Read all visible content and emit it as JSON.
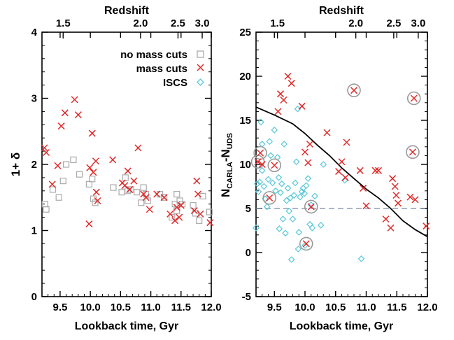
{
  "chart_data": [
    {
      "type": "scatter",
      "xlabel": "Lookback time, Gyr",
      "ylabel": "1+ δ",
      "top_axis_label": "Redshift",
      "xlim": [
        9.2,
        12.0
      ],
      "ylim": [
        0,
        4
      ],
      "x_ticks": [
        9.5,
        10.0,
        10.5,
        11.0,
        11.5,
        12.0
      ],
      "x_tick_labels": [
        "9.5",
        "10.0",
        "10.5",
        "11.0",
        "11.5",
        "12.0"
      ],
      "y_ticks": [
        0,
        1,
        2,
        3,
        4
      ],
      "y_tick_labels": [
        "0",
        "1",
        "2",
        "3",
        "4"
      ],
      "top_ticks": [
        {
          "t": 9.55,
          "label": "1.5"
        },
        {
          "t": 10.83,
          "label": "2.0"
        },
        {
          "t": 11.45,
          "label": "2.5"
        },
        {
          "t": 11.85,
          "label": "3.0"
        }
      ],
      "legend_position": "top-right",
      "series": [
        {
          "name": "no mass cuts",
          "marker": "square",
          "color": "#aaaaaa",
          "points": [
            [
              9.25,
              1.4
            ],
            [
              9.27,
              1.32
            ],
            [
              9.38,
              1.62
            ],
            [
              9.48,
              1.5
            ],
            [
              9.55,
              1.75
            ],
            [
              9.6,
              2.0
            ],
            [
              9.72,
              2.07
            ],
            [
              9.82,
              1.85
            ],
            [
              9.98,
              1.7
            ],
            [
              10.03,
              1.78
            ],
            [
              10.05,
              1.48
            ],
            [
              10.08,
              1.42
            ],
            [
              10.38,
              1.65
            ],
            [
              10.52,
              1.58
            ],
            [
              10.58,
              1.8
            ],
            [
              10.62,
              1.6
            ],
            [
              10.67,
              1.62
            ],
            [
              10.77,
              1.58
            ],
            [
              10.84,
              1.42
            ],
            [
              10.88,
              1.65
            ],
            [
              10.92,
              1.55
            ],
            [
              10.95,
              1.45
            ],
            [
              11.15,
              1.55
            ],
            [
              11.22,
              1.5
            ],
            [
              11.35,
              1.2
            ],
            [
              11.4,
              1.4
            ],
            [
              11.43,
              1.55
            ],
            [
              11.48,
              1.45
            ],
            [
              11.52,
              1.4
            ],
            [
              11.7,
              1.38
            ],
            [
              11.74,
              1.26
            ],
            [
              11.8,
              1.15
            ],
            [
              11.86,
              1.52
            ],
            [
              11.97,
              1.28
            ],
            [
              11.43,
              1.3
            ]
          ]
        },
        {
          "name": "mass cuts",
          "marker": "x",
          "color": "#e02a2a",
          "points": [
            [
              9.24,
              2.25
            ],
            [
              9.27,
              2.18
            ],
            [
              9.37,
              1.7
            ],
            [
              9.46,
              1.98
            ],
            [
              9.52,
              2.58
            ],
            [
              9.58,
              2.78
            ],
            [
              9.74,
              2.98
            ],
            [
              9.8,
              2.75
            ],
            [
              9.98,
              1.1
            ],
            [
              9.99,
              1.95
            ],
            [
              10.03,
              2.47
            ],
            [
              10.05,
              1.88
            ],
            [
              10.09,
              2.05
            ],
            [
              10.1,
              1.58
            ],
            [
              10.12,
              1.45
            ],
            [
              10.37,
              2.07
            ],
            [
              10.53,
              1.72
            ],
            [
              10.57,
              1.68
            ],
            [
              10.62,
              1.9
            ],
            [
              10.65,
              1.62
            ],
            [
              10.72,
              1.75
            ],
            [
              10.79,
              2.25
            ],
            [
              10.88,
              1.55
            ],
            [
              10.92,
              1.5
            ],
            [
              10.98,
              1.32
            ],
            [
              11.1,
              1.55
            ],
            [
              11.22,
              1.5
            ],
            [
              11.32,
              1.25
            ],
            [
              11.4,
              1.15
            ],
            [
              11.43,
              1.35
            ],
            [
              11.47,
              1.2
            ],
            [
              11.5,
              1.38
            ],
            [
              11.72,
              1.3
            ],
            [
              11.76,
              1.75
            ],
            [
              11.78,
              1.55
            ],
            [
              11.82,
              1.25
            ],
            [
              11.98,
              1.12
            ]
          ]
        },
        {
          "name": "ISCS",
          "marker": "diamond",
          "color": "#5bc8d8",
          "points": []
        }
      ]
    },
    {
      "type": "scatter",
      "xlabel": "Lookback time, Gyr",
      "ylabel_main": "N",
      "ylabel_sub1": "CARLA",
      "ylabel_mid": "-N",
      "ylabel_sub2": "UDS",
      "top_axis_label": "Redshift",
      "xlim": [
        9.2,
        12.0
      ],
      "ylim": [
        -5,
        25
      ],
      "x_ticks": [
        9.5,
        10.0,
        10.5,
        11.0,
        11.5,
        12.0
      ],
      "x_tick_labels": [
        "9.5",
        "10.0",
        "10.5",
        "11.0",
        "11.5",
        "12.0"
      ],
      "y_ticks": [
        -5,
        0,
        5,
        10,
        15,
        20,
        25
      ],
      "y_tick_labels": [
        "-5",
        "0",
        "5",
        "10",
        "15",
        "20",
        "25"
      ],
      "top_ticks": [
        {
          "t": 9.55,
          "label": "1.5"
        },
        {
          "t": 10.83,
          "label": "2.0"
        },
        {
          "t": 11.45,
          "label": "2.5"
        },
        {
          "t": 11.85,
          "label": "3.0"
        }
      ],
      "reference_line_y": 5,
      "trend_curve": [
        [
          9.2,
          16.5
        ],
        [
          9.5,
          15.6
        ],
        [
          9.8,
          14.6
        ],
        [
          10.0,
          13.5
        ],
        [
          10.2,
          12.2
        ],
        [
          10.4,
          11.0
        ],
        [
          10.6,
          9.6
        ],
        [
          10.8,
          8.4
        ],
        [
          11.0,
          7.2
        ],
        [
          11.2,
          6.2
        ],
        [
          11.4,
          5.0
        ],
        [
          11.6,
          3.6
        ],
        [
          11.8,
          2.6
        ],
        [
          12.0,
          1.8
        ]
      ],
      "mass_cuts": [
        [
          9.23,
          10.3
        ],
        [
          9.27,
          11.3
        ],
        [
          9.3,
          10.0
        ],
        [
          9.42,
          6.2
        ],
        [
          9.5,
          9.9
        ],
        [
          9.56,
          16.0
        ],
        [
          9.6,
          18.0
        ],
        [
          9.65,
          17.3
        ],
        [
          9.72,
          20.0
        ],
        [
          9.78,
          19.2
        ],
        [
          9.95,
          16.6
        ],
        [
          10.0,
          11.4
        ],
        [
          10.02,
          1.0
        ],
        [
          10.05,
          10.2
        ],
        [
          10.08,
          12.3
        ],
        [
          10.1,
          5.2
        ],
        [
          10.36,
          13.6
        ],
        [
          10.55,
          9.2
        ],
        [
          10.6,
          10.3
        ],
        [
          10.66,
          8.5
        ],
        [
          10.68,
          12.5
        ],
        [
          10.8,
          18.4
        ],
        [
          10.9,
          9.3
        ],
        [
          10.95,
          7.3
        ],
        [
          11.0,
          5.3
        ],
        [
          11.15,
          9.3
        ],
        [
          11.2,
          9.3
        ],
        [
          11.32,
          3.8
        ],
        [
          11.4,
          2.8
        ],
        [
          11.43,
          8.4
        ],
        [
          11.47,
          7.5
        ],
        [
          11.49,
          6.5
        ],
        [
          11.52,
          5.6
        ],
        [
          11.72,
          6.3
        ],
        [
          11.76,
          11.4
        ],
        [
          11.78,
          17.5
        ],
        [
          11.8,
          6.0
        ],
        [
          11.98,
          3.0
        ]
      ],
      "iscs": [
        [
          9.2,
          2.8
        ],
        [
          9.22,
          7.8
        ],
        [
          9.24,
          6.9
        ],
        [
          9.26,
          8.0
        ],
        [
          9.28,
          14.8
        ],
        [
          9.3,
          12.3
        ],
        [
          9.3,
          9.3
        ],
        [
          9.33,
          7.5
        ],
        [
          9.35,
          6.1
        ],
        [
          9.38,
          5.2
        ],
        [
          9.4,
          8.3
        ],
        [
          9.42,
          12.6
        ],
        [
          9.44,
          11.0
        ],
        [
          9.47,
          7.9
        ],
        [
          9.5,
          13.9
        ],
        [
          9.52,
          7.0
        ],
        [
          9.55,
          10.8
        ],
        [
          9.57,
          8.5
        ],
        [
          9.58,
          2.7
        ],
        [
          9.6,
          6.8
        ],
        [
          9.62,
          7.8
        ],
        [
          9.64,
          3.8
        ],
        [
          9.66,
          12.3
        ],
        [
          9.68,
          2.2
        ],
        [
          9.7,
          5.9
        ],
        [
          9.72,
          7.3
        ],
        [
          9.74,
          4.7
        ],
        [
          9.76,
          6.2
        ],
        [
          9.78,
          -0.8
        ],
        [
          9.8,
          3.8
        ],
        [
          9.82,
          6.5
        ],
        [
          9.84,
          7.9
        ],
        [
          9.86,
          10.3
        ],
        [
          9.88,
          16.3
        ],
        [
          9.89,
          0.4
        ],
        [
          9.9,
          2.3
        ],
        [
          9.92,
          6.3
        ],
        [
          9.95,
          6.9
        ],
        [
          9.97,
          7.3
        ],
        [
          9.99,
          6.7
        ],
        [
          10.0,
          0.8
        ],
        [
          10.02,
          7.6
        ],
        [
          10.05,
          8.4
        ],
        [
          10.08,
          3.2
        ],
        [
          10.1,
          5.4
        ],
        [
          10.12,
          2.8
        ],
        [
          10.16,
          6.4
        ],
        [
          10.26,
          3.1
        ],
        [
          10.3,
          10.0
        ],
        [
          10.65,
          8.2
        ],
        [
          10.92,
          -0.7
        ]
      ],
      "circled": [
        [
          9.23,
          10.3
        ],
        [
          9.27,
          11.3
        ],
        [
          9.42,
          6.2
        ],
        [
          9.5,
          9.9
        ],
        [
          10.02,
          1.0
        ],
        [
          10.1,
          5.2
        ],
        [
          10.8,
          18.4
        ],
        [
          11.76,
          11.4
        ],
        [
          11.78,
          17.5
        ]
      ]
    }
  ],
  "ui_colors": {
    "mass_cuts": "#e02a2a",
    "iscs": "#5bc8d8",
    "no_mass_cuts": "#aaaaaa",
    "reference_line": "#7a8aa8",
    "circle": "#999999"
  }
}
